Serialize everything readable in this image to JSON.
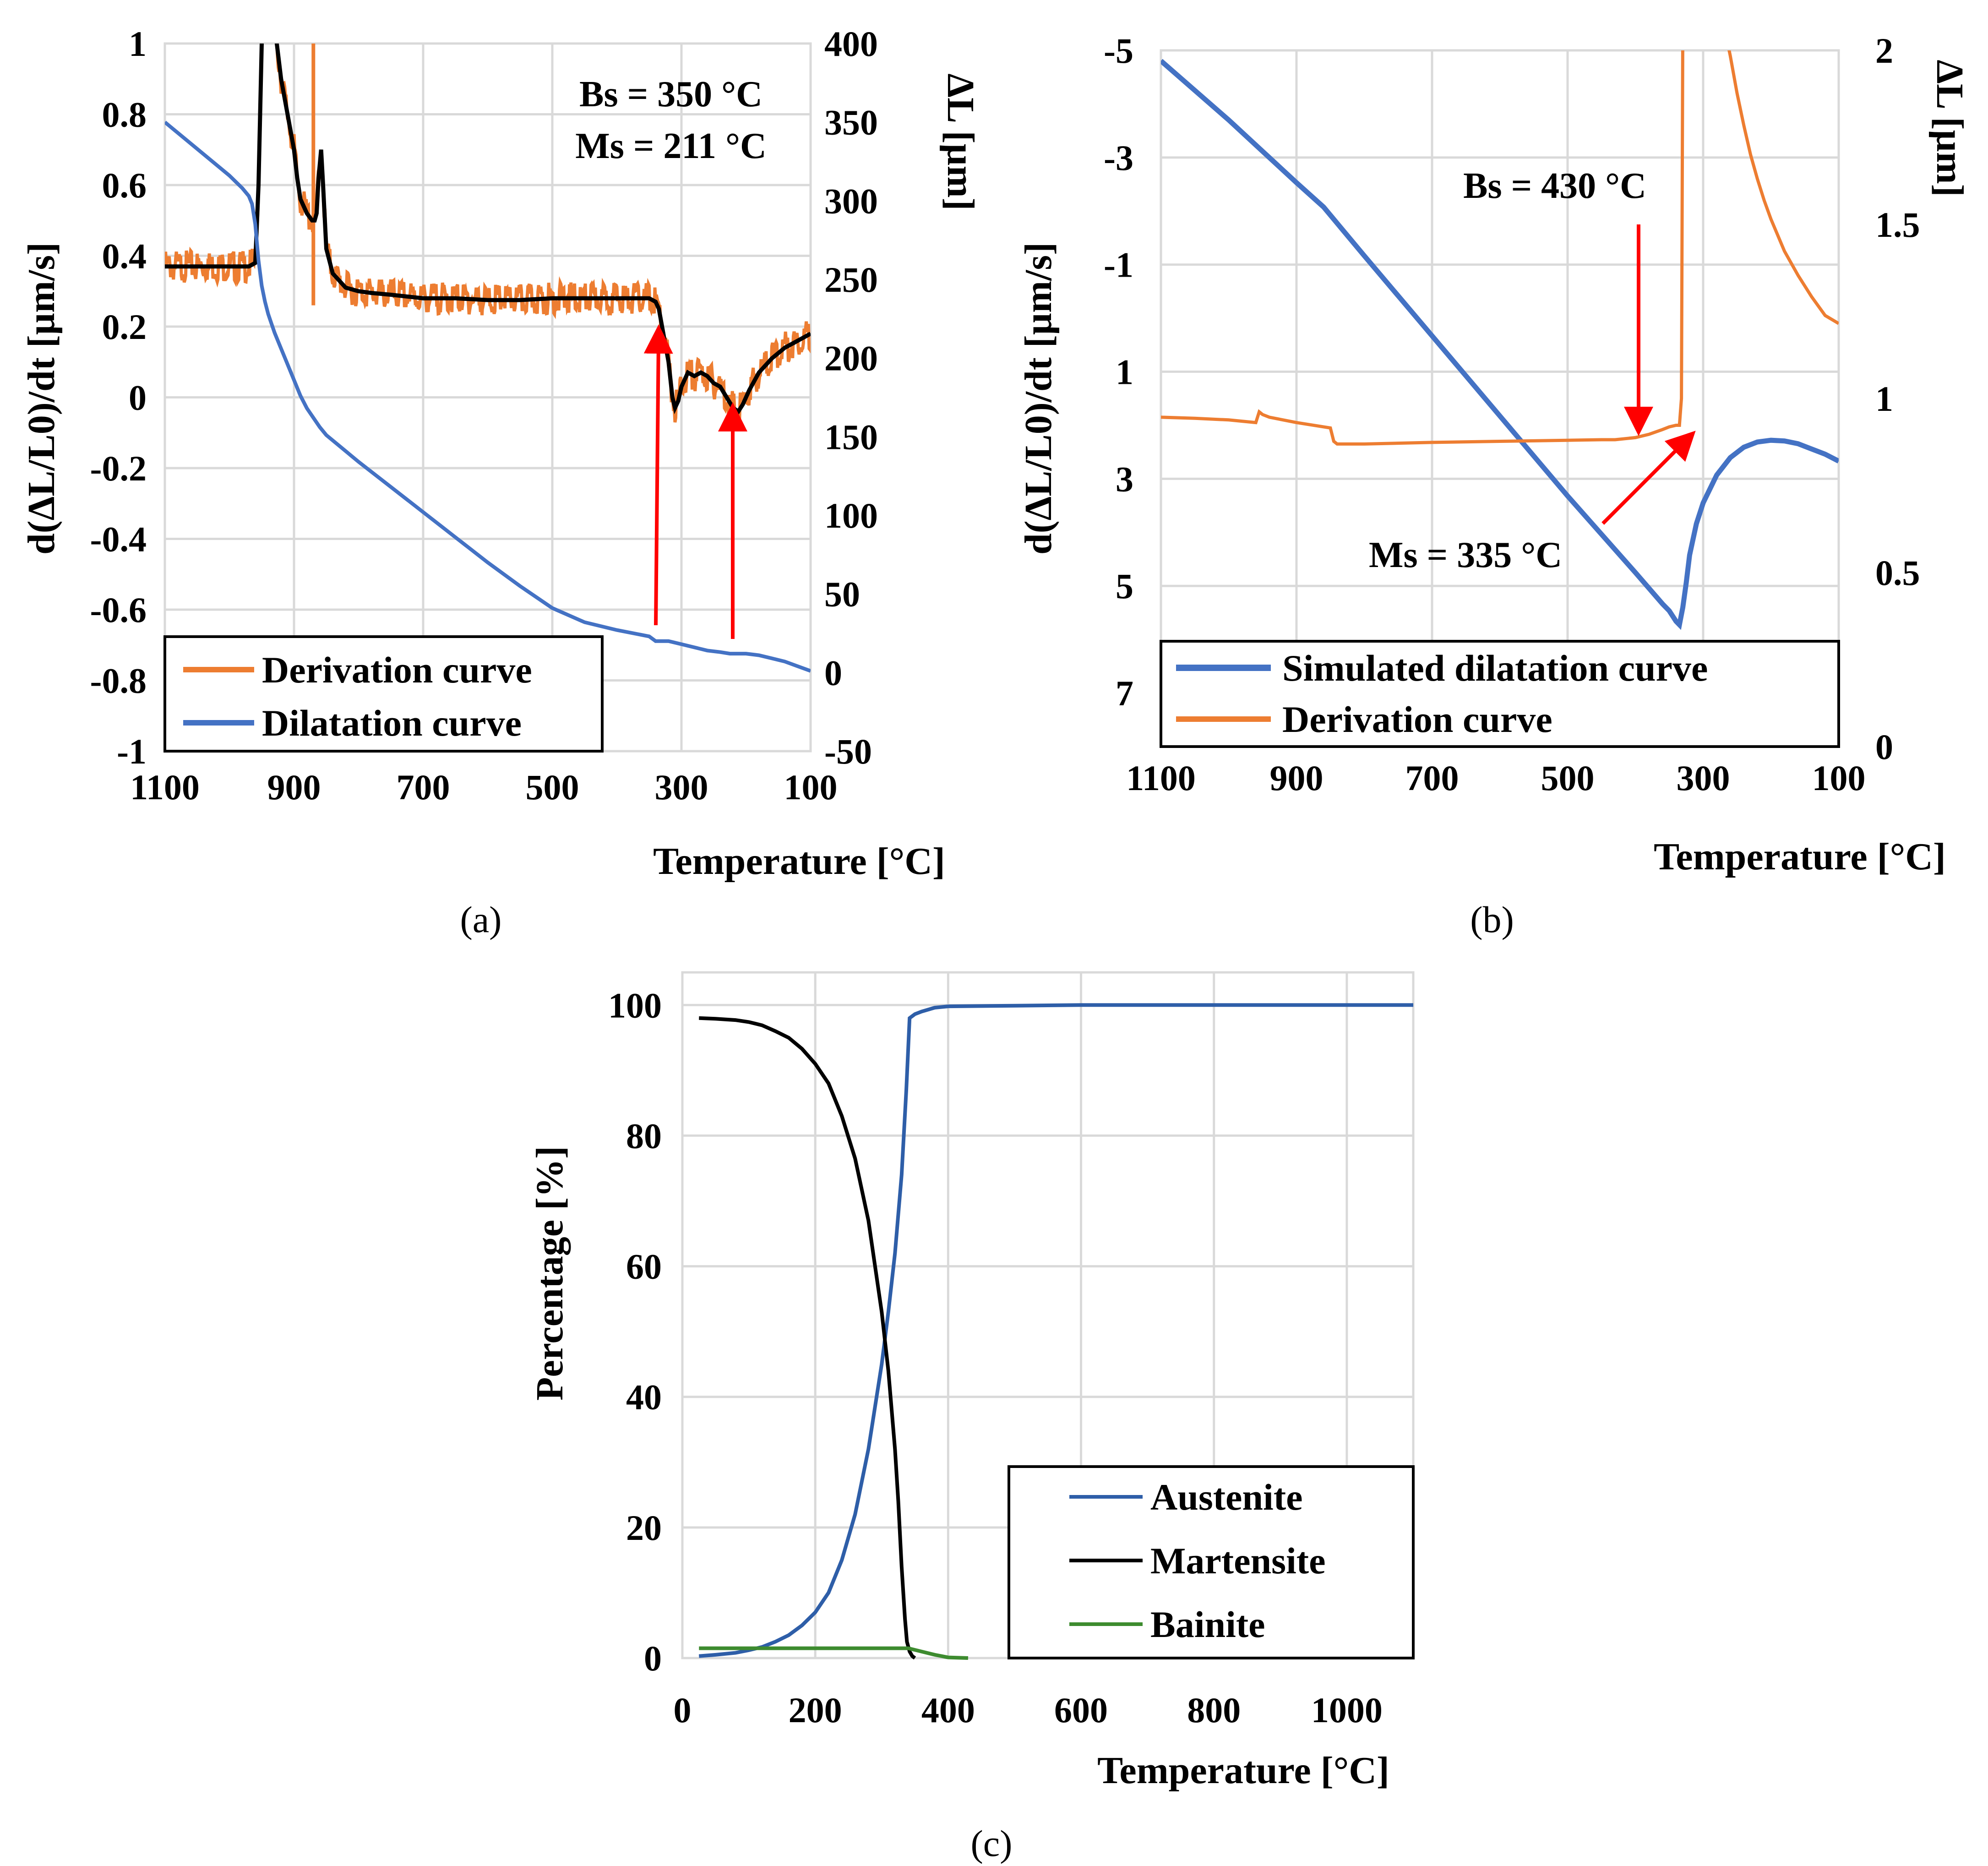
{
  "chart_data": [
    {
      "type": "line",
      "panel_label": "(a)",
      "xlabel": "Temperature [°C]",
      "ylabel_left": "d(ΔL/L0)/dt [µm/s]",
      "ylabel_right": "ΔL [µm]",
      "xlim": [
        1100,
        100
      ],
      "x_ticks": [
        "1100",
        "900",
        "700",
        "500",
        "300",
        "100"
      ],
      "ylim_left": [
        -1,
        1
      ],
      "y_ticks_left": [
        "-1",
        "-0.8",
        "-0.6",
        "-0.4",
        "-0.2",
        "0",
        "0.2",
        "0.4",
        "0.6",
        "0.8",
        "1"
      ],
      "ylim_right": [
        -50,
        400
      ],
      "y_ticks_right": [
        "-50",
        "0",
        "50",
        "100",
        "150",
        "200",
        "250",
        "300",
        "350",
        "400"
      ],
      "annotations": [
        "Bs = 350 °C",
        "Ms = 211 °C"
      ],
      "arrows_at_temperature": [
        340,
        213
      ],
      "legend": [
        "Derivation curve",
        "Dilatation curve"
      ],
      "colors": {
        "derivation": "#ed7d31",
        "dilatation": "#4472c4",
        "smoothed": "#000000",
        "arrow": "#ff0000"
      },
      "series": [
        {
          "name": "Derivation curve",
          "axis": "left",
          "x": [
            1100,
            1050,
            1000,
            970,
            960,
            955,
            950,
            945,
            940,
            935,
            930,
            920,
            910,
            900,
            895,
            890,
            880,
            872,
            868,
            865,
            862,
            858,
            855,
            850,
            840,
            820,
            800,
            780,
            750,
            700,
            650,
            600,
            550,
            500,
            450,
            400,
            370,
            350,
            340,
            335,
            330,
            320,
            314,
            310,
            305,
            300,
            290,
            280,
            270,
            260,
            250,
            240,
            230,
            220,
            212,
            205,
            195,
            180,
            160,
            140,
            120,
            100
          ],
          "y": [
            0.37,
            0.37,
            0.37,
            0.37,
            0.38,
            0.6,
            1.0,
            1.1,
            1.1,
            1.1,
            1.05,
            0.9,
            0.8,
            0.7,
            0.62,
            0.56,
            0.52,
            0.5,
            0.5,
            0.52,
            0.62,
            0.7,
            0.6,
            0.42,
            0.35,
            0.31,
            0.3,
            0.295,
            0.29,
            0.28,
            0.28,
            0.275,
            0.275,
            0.28,
            0.28,
            0.28,
            0.28,
            0.28,
            0.27,
            0.25,
            0.2,
            0.1,
            0.0,
            -0.03,
            -0.01,
            0.03,
            0.07,
            0.06,
            0.07,
            0.06,
            0.04,
            0.03,
            0.0,
            -0.03,
            -0.04,
            -0.02,
            0.02,
            0.07,
            0.11,
            0.14,
            0.16,
            0.18
          ]
        },
        {
          "name": "Dilatation curve",
          "axis": "right",
          "x": [
            1100,
            1050,
            1000,
            980,
            970,
            965,
            960,
            955,
            950,
            945,
            940,
            935,
            930,
            920,
            910,
            900,
            890,
            880,
            870,
            860,
            850,
            800,
            750,
            700,
            650,
            600,
            550,
            500,
            450,
            400,
            350,
            340,
            330,
            320,
            300,
            280,
            260,
            240,
            225,
            215,
            200,
            180,
            160,
            140,
            120,
            100
          ],
          "y": [
            350,
            333,
            316,
            308,
            303,
            298,
            285,
            262,
            246,
            236,
            228,
            222,
            216,
            206,
            196,
            186,
            176,
            168,
            162,
            156,
            151,
            134,
            118,
            102,
            86,
            70,
            55,
            41,
            32,
            27,
            23,
            20,
            20,
            20,
            18,
            16,
            14,
            13,
            12,
            12,
            12,
            11,
            9,
            7,
            4,
            1
          ]
        }
      ]
    },
    {
      "type": "line",
      "panel_label": "(b)",
      "xlabel": "Temperature [°C]",
      "ylabel_left": "d(ΔL/L0)/dt [µm/s]",
      "ylabel_right": "ΔL [µm]",
      "xlim": [
        1100,
        100
      ],
      "x_ticks": [
        "1100",
        "900",
        "700",
        "500",
        "300",
        "100"
      ],
      "ylim_left": [
        -5,
        8
      ],
      "y_ticks_left": [
        "-5",
        "-3",
        "-1",
        "1",
        "3",
        "5",
        "7"
      ],
      "ylim_right": [
        0,
        2
      ],
      "y_ticks_right": [
        "0",
        "0.5",
        "1",
        "1.5",
        "2"
      ],
      "annotations": [
        "Bs = 430 °C",
        "Ms = 335 °C"
      ],
      "legend": [
        "Simulated dilatation curve",
        "Derivation curve"
      ],
      "colors": {
        "simulated": "#4472c4",
        "derivation": "#ed7d31",
        "arrow": "#ff0000"
      },
      "series": [
        {
          "name": "Simulated dilatation curve",
          "axis": "right",
          "x": [
            1100,
            1000,
            950,
            900,
            860,
            800,
            700,
            600,
            500,
            400,
            360,
            350,
            345,
            340,
            335,
            330,
            325,
            320,
            310,
            300,
            280,
            260,
            240,
            220,
            200,
            180,
            160,
            140,
            120,
            100
          ],
          "y": [
            1.97,
            1.8,
            1.71,
            1.62,
            1.55,
            1.41,
            1.18,
            0.95,
            0.72,
            0.5,
            0.41,
            0.39,
            0.375,
            0.36,
            0.35,
            0.4,
            0.47,
            0.55,
            0.64,
            0.7,
            0.78,
            0.83,
            0.86,
            0.875,
            0.88,
            0.878,
            0.87,
            0.855,
            0.84,
            0.82
          ]
        },
        {
          "name": "Derivation curve",
          "axis": "left",
          "x": [
            1100,
            1050,
            1000,
            960,
            955,
            950,
            940,
            900,
            850,
            845,
            840,
            830,
            800,
            700,
            600,
            500,
            450,
            430,
            400,
            380,
            360,
            350,
            340,
            335,
            332,
            330,
            325,
            320,
            310,
            300,
            290,
            280,
            270,
            260,
            250,
            240,
            230,
            220,
            210,
            200,
            180,
            160,
            140,
            120,
            100
          ],
          "y": [
            1.85,
            1.87,
            1.9,
            1.95,
            1.75,
            1.8,
            1.85,
            1.95,
            2.05,
            2.3,
            2.35,
            2.35,
            2.35,
            2.32,
            2.3,
            2.28,
            2.27,
            2.27,
            2.23,
            2.17,
            2.08,
            2.03,
            2.0,
            2.0,
            1.5,
            -5.5,
            -5.5,
            -5.5,
            -5.5,
            -5.5,
            -5.5,
            -5.5,
            -5.5,
            -4.9,
            -4.2,
            -3.6,
            -3.05,
            -2.6,
            -2.2,
            -1.85,
            -1.25,
            -0.8,
            -0.4,
            -0.05,
            0.1
          ]
        }
      ]
    },
    {
      "type": "line",
      "panel_label": "(c)",
      "xlabel": "Temperature [°C]",
      "ylabel": "Percentage [%]",
      "xlim": [
        0,
        1100
      ],
      "x_ticks": [
        "0",
        "200",
        "400",
        "600",
        "800",
        "1000"
      ],
      "ylim": [
        0,
        105
      ],
      "y_ticks": [
        "0",
        "20",
        "40",
        "60",
        "80",
        "100"
      ],
      "legend": [
        "Austenite",
        "Martensite",
        "Bainite"
      ],
      "colors": {
        "austenite": "#2e5ea8",
        "martensite": "#000000",
        "bainite": "#3d8b2f"
      },
      "series": [
        {
          "name": "Austenite",
          "x": [
            25,
            50,
            80,
            100,
            120,
            140,
            160,
            180,
            200,
            220,
            240,
            260,
            280,
            300,
            310,
            320,
            330,
            337,
            342,
            350,
            360,
            380,
            400,
            500,
            600,
            700,
            800,
            900,
            1000,
            1100
          ],
          "y": [
            0.3,
            0.5,
            0.8,
            1.2,
            1.7,
            2.5,
            3.5,
            5.0,
            7.0,
            10.0,
            15.0,
            22.0,
            32.0,
            45.0,
            53.0,
            62.0,
            74.0,
            87.0,
            98.0,
            98.6,
            99.0,
            99.6,
            99.8,
            99.9,
            100,
            100,
            100,
            100,
            100,
            100
          ]
        },
        {
          "name": "Martensite",
          "x": [
            25,
            50,
            80,
            100,
            120,
            140,
            160,
            180,
            200,
            220,
            240,
            260,
            280,
            300,
            310,
            320,
            325,
            330,
            335,
            338,
            342,
            346,
            350
          ],
          "y": [
            98.0,
            97.9,
            97.7,
            97.4,
            96.9,
            96.0,
            95.0,
            93.3,
            91.0,
            88.0,
            83.0,
            76.5,
            67.0,
            53.0,
            44.0,
            32.0,
            24.0,
            14.0,
            6.0,
            2.5,
            1.0,
            0.3,
            0.0
          ]
        },
        {
          "name": "Bainite",
          "x": [
            25,
            100,
            200,
            300,
            340,
            360,
            380,
            400,
            430
          ],
          "y": [
            1.5,
            1.5,
            1.5,
            1.5,
            1.5,
            1.0,
            0.5,
            0.1,
            0.0
          ]
        }
      ]
    }
  ]
}
